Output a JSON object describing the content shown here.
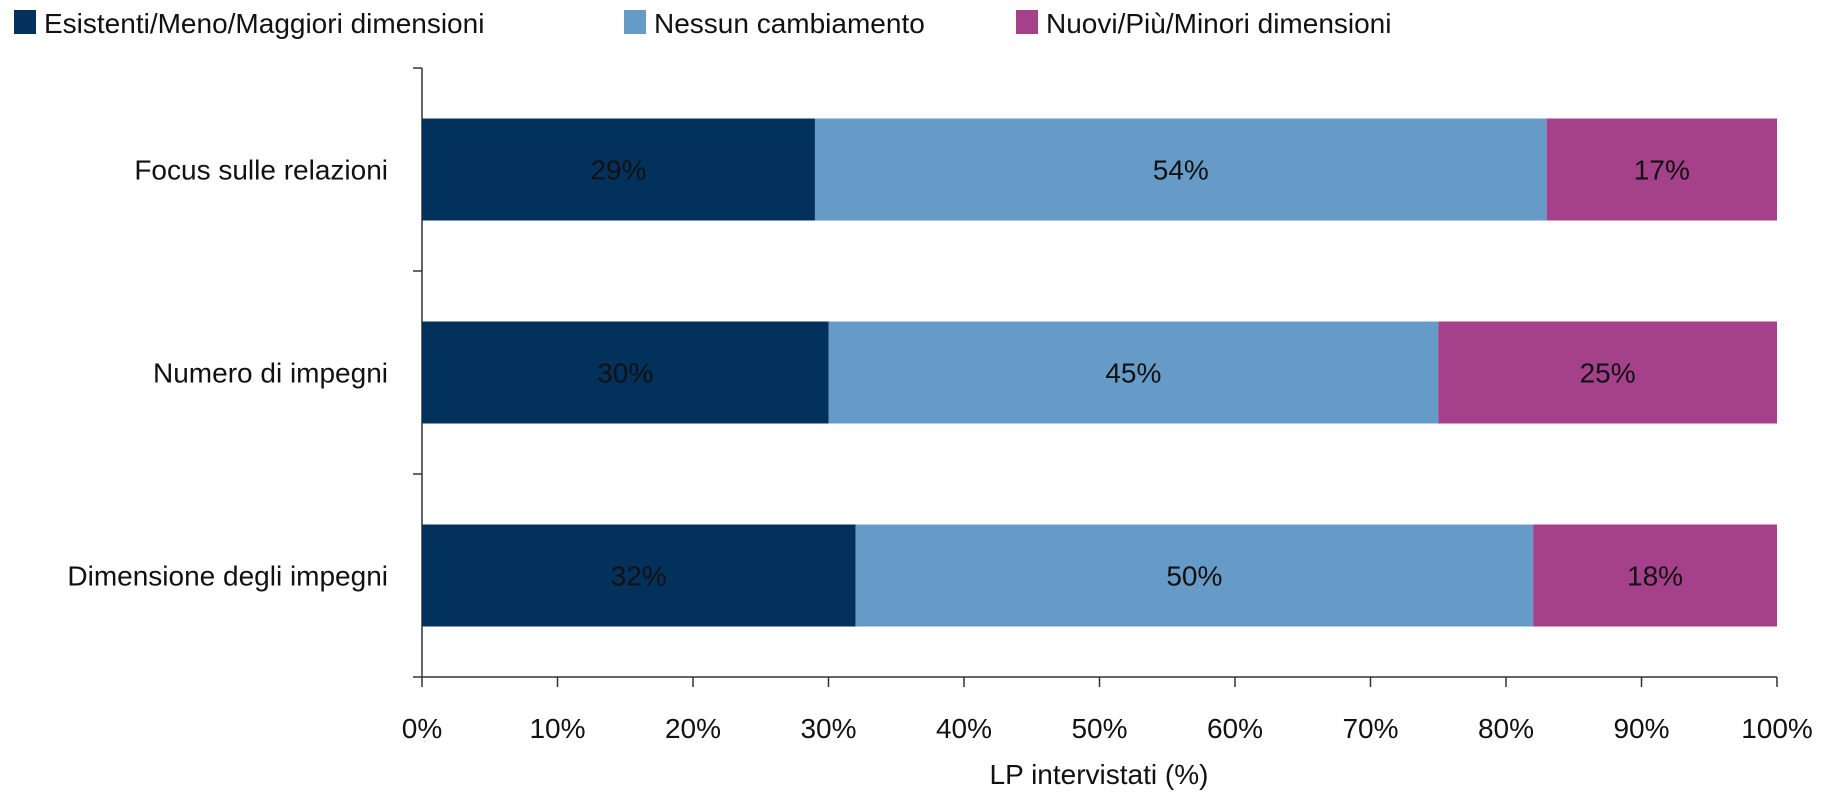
{
  "chart_data": {
    "type": "bar",
    "orientation": "horizontal",
    "stacked": true,
    "categories": [
      "Focus sulle relazioni",
      "Numero di impegni",
      "Dimensione degli impegni"
    ],
    "series": [
      {
        "name": "Esistenti/Meno/Maggiori dimensioni",
        "color": "#02315b",
        "values": [
          29,
          30,
          32
        ],
        "labels": [
          "29%",
          "30%",
          "32%"
        ],
        "label_color": "#ffffff"
      },
      {
        "name": "Nessun cambiamento",
        "color": "#669bc8",
        "values": [
          54,
          45,
          50
        ],
        "labels": [
          "54%",
          "45%",
          "50%"
        ],
        "label_color": "#111111"
      },
      {
        "name": "Nuovi/Più/Minori dimensioni",
        "color": "#a4418a",
        "values": [
          17,
          25,
          18
        ],
        "labels": [
          "17%",
          "25%",
          "18%"
        ],
        "label_color": "#ffffff"
      }
    ],
    "xlabel": "LP intervistati (%)",
    "ylabel": "",
    "xlim": [
      0,
      100
    ],
    "xticks": [
      0,
      10,
      20,
      30,
      40,
      50,
      60,
      70,
      80,
      90,
      100
    ],
    "xtick_labels": [
      "0%",
      "10%",
      "20%",
      "30%",
      "40%",
      "50%",
      "60%",
      "70%",
      "80%",
      "90%",
      "100%"
    ],
    "grid": false,
    "legend_position": "top"
  }
}
